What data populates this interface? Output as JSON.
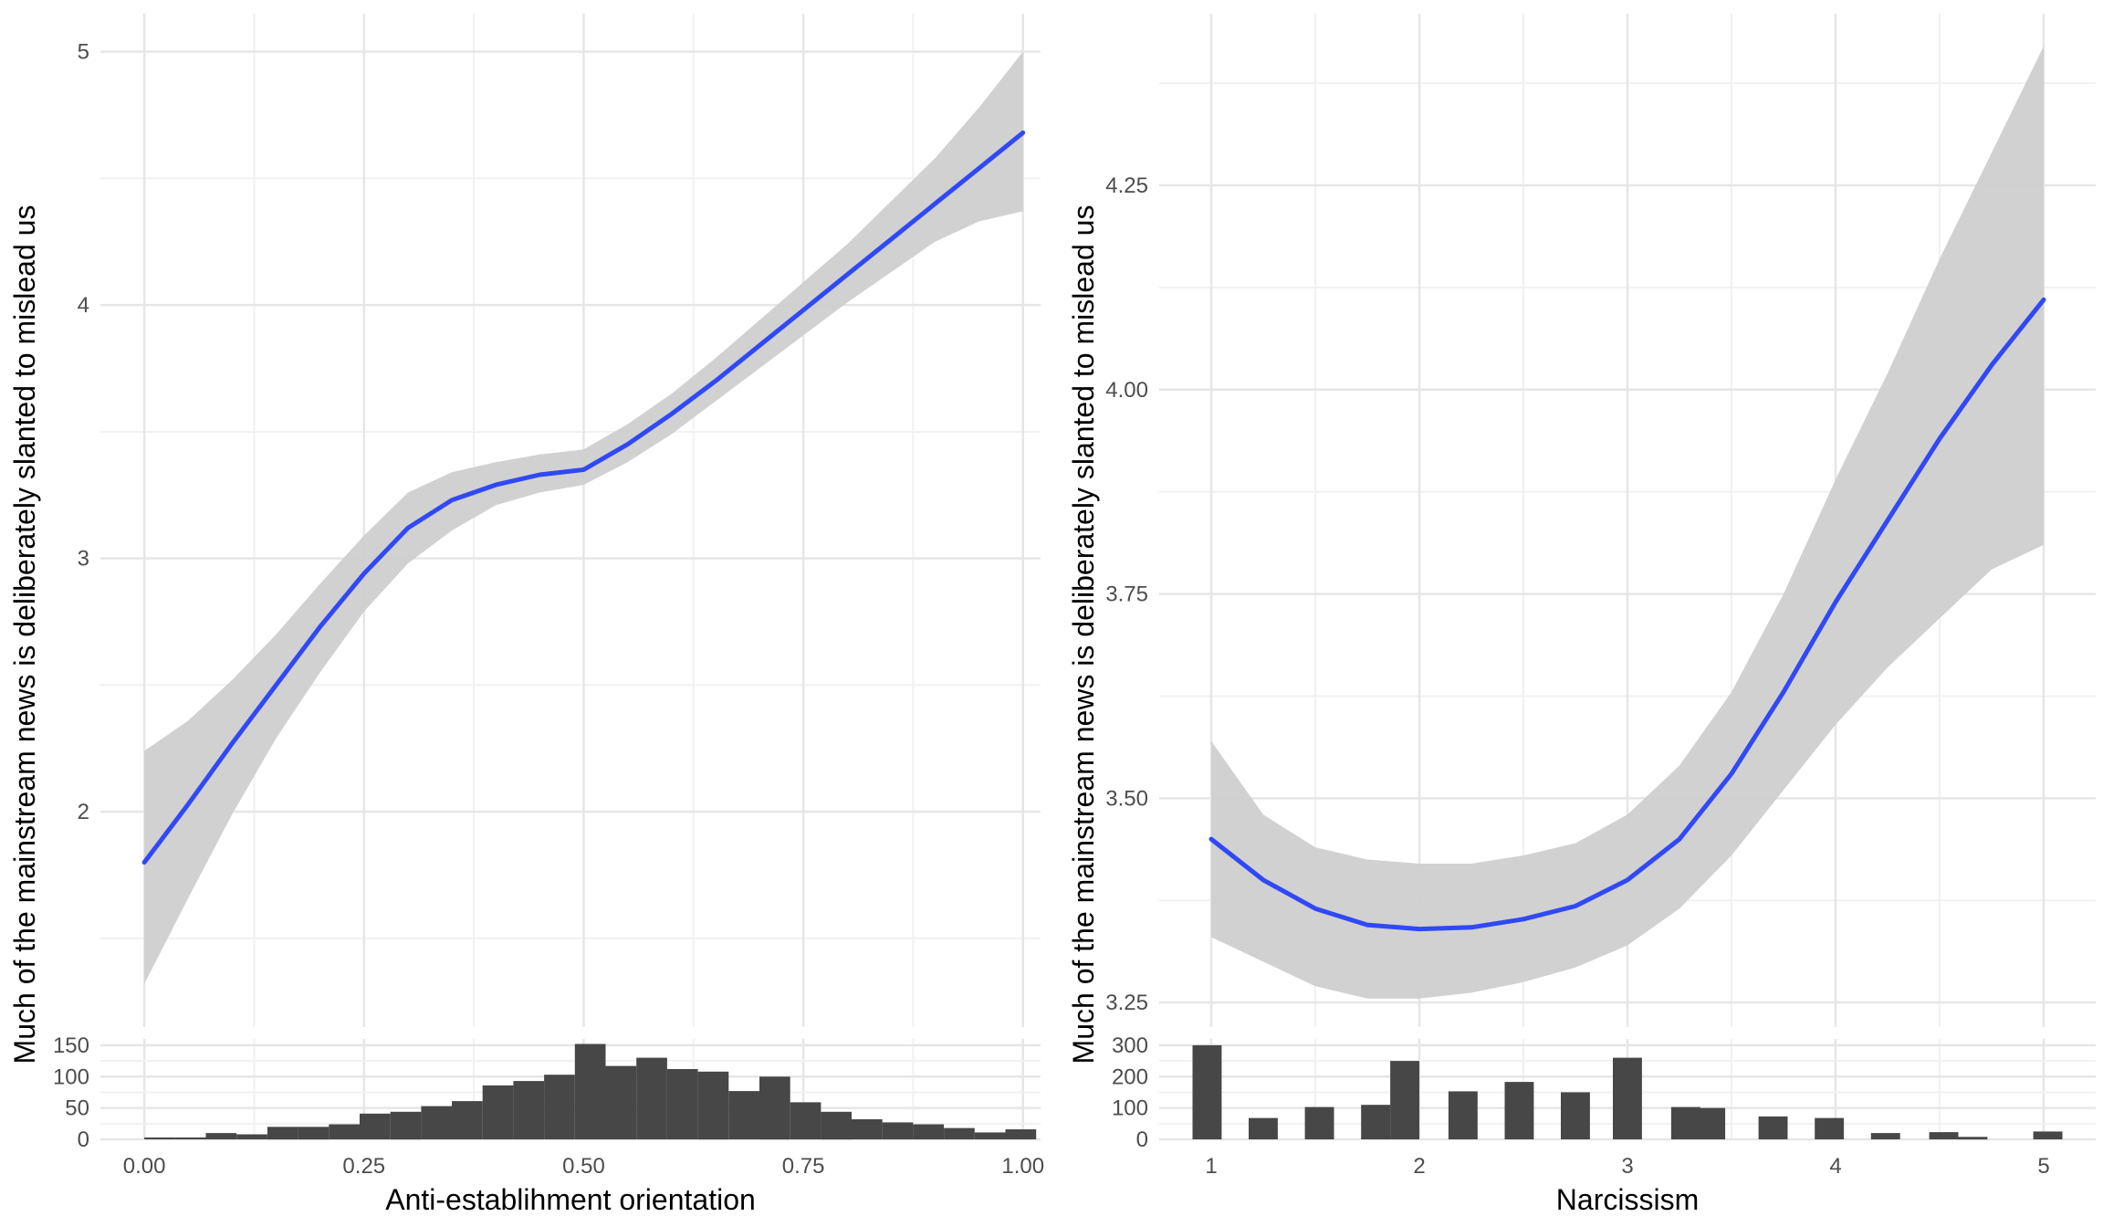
{
  "colors": {
    "smooth_line": "#3049f5",
    "ci_band": "#cfcfcf",
    "histogram": "#474747",
    "grid_major": "#e6e6e6",
    "grid_minor": "#f1f1f1"
  },
  "chart_data": [
    {
      "type": "line",
      "panel": "left",
      "xlabel": "Anti-establihment orientation",
      "ylabel": "Much of the mainstream news is deliberately slanted to mislead us",
      "xlim": [
        -0.05,
        1.02
      ],
      "ylim": [
        1.15,
        5.15
      ],
      "x_ticks": [
        "0.00",
        "0.25",
        "0.50",
        "0.75",
        "1.00"
      ],
      "x_tick_values": [
        0,
        0.25,
        0.5,
        0.75,
        1
      ],
      "y_ticks": [
        "2",
        "3",
        "4",
        "5"
      ],
      "y_tick_values": [
        2,
        3,
        4,
        5
      ],
      "grid": true,
      "series": [
        {
          "x": [
            0.0,
            0.05,
            0.1,
            0.15,
            0.2,
            0.25,
            0.3,
            0.35,
            0.4,
            0.45,
            0.5,
            0.55,
            0.6,
            0.65,
            0.7,
            0.75,
            0.8,
            0.85,
            0.9,
            0.95,
            1.0
          ],
          "y": [
            1.8,
            2.03,
            2.27,
            2.5,
            2.73,
            2.94,
            3.12,
            3.23,
            3.29,
            3.33,
            3.35,
            3.45,
            3.57,
            3.7,
            3.84,
            3.98,
            4.12,
            4.26,
            4.4,
            4.54,
            4.68
          ],
          "lower": [
            1.32,
            1.66,
            1.99,
            2.29,
            2.55,
            2.79,
            2.98,
            3.11,
            3.21,
            3.26,
            3.29,
            3.38,
            3.49,
            3.62,
            3.75,
            3.88,
            4.01,
            4.13,
            4.25,
            4.33,
            4.37
          ],
          "upper": [
            2.24,
            2.36,
            2.52,
            2.7,
            2.9,
            3.09,
            3.26,
            3.34,
            3.38,
            3.41,
            3.43,
            3.53,
            3.65,
            3.79,
            3.94,
            4.09,
            4.24,
            4.41,
            4.58,
            4.78,
            5.0
          ]
        }
      ],
      "histogram": {
        "ylim": [
          0,
          160
        ],
        "y_ticks": [
          "0",
          "50",
          "100",
          "150"
        ],
        "y_tick_values": [
          0,
          50,
          100,
          150
        ],
        "bin_width": 0.035,
        "bin_centers": [
          0.0175,
          0.0525,
          0.0875,
          0.1225,
          0.1575,
          0.1925,
          0.2275,
          0.2625,
          0.2975,
          0.3325,
          0.3675,
          0.4025,
          0.4375,
          0.4725,
          0.5075,
          0.5425,
          0.5775,
          0.6125,
          0.6475,
          0.6825,
          0.7175,
          0.7525,
          0.7875,
          0.8225,
          0.8575,
          0.8925,
          0.9275,
          0.9625,
          0.9975
        ],
        "counts": [
          3,
          3,
          10,
          8,
          20,
          20,
          24,
          41,
          44,
          53,
          61,
          86,
          93,
          103,
          152,
          117,
          130,
          112,
          108,
          77,
          100,
          59,
          44,
          32,
          27,
          24,
          18,
          11,
          16
        ]
      }
    },
    {
      "type": "line",
      "panel": "right",
      "xlabel": "Narcissism",
      "ylabel": "Much of the mainstream news is deliberately slanted to mislead us",
      "xlim": [
        0.75,
        5.25
      ],
      "ylim": [
        3.22,
        4.46
      ],
      "x_ticks": [
        "1",
        "2",
        "3",
        "4",
        "5"
      ],
      "x_tick_values": [
        1,
        2,
        3,
        4,
        5
      ],
      "y_ticks": [
        "3.25",
        "3.50",
        "3.75",
        "4.00",
        "4.25"
      ],
      "y_tick_values": [
        3.25,
        3.5,
        3.75,
        4.0,
        4.25
      ],
      "grid": true,
      "series": [
        {
          "x": [
            1.0,
            1.25,
            1.5,
            1.75,
            2.0,
            2.25,
            2.5,
            2.75,
            3.0,
            3.25,
            3.5,
            3.75,
            4.0,
            4.25,
            4.5,
            4.75,
            5.0
          ],
          "y": [
            3.45,
            3.4,
            3.365,
            3.345,
            3.34,
            3.342,
            3.352,
            3.368,
            3.4,
            3.45,
            3.53,
            3.63,
            3.74,
            3.84,
            3.94,
            4.03,
            4.11
          ],
          "lower": [
            3.33,
            3.3,
            3.27,
            3.255,
            3.255,
            3.262,
            3.275,
            3.293,
            3.32,
            3.365,
            3.43,
            3.51,
            3.59,
            3.66,
            3.72,
            3.78,
            3.81
          ],
          "upper": [
            3.57,
            3.48,
            3.44,
            3.425,
            3.42,
            3.42,
            3.43,
            3.445,
            3.48,
            3.54,
            3.63,
            3.75,
            3.89,
            4.02,
            4.16,
            4.29,
            4.42
          ]
        }
      ],
      "histogram": {
        "ylim": [
          0,
          320
        ],
        "y_ticks": [
          "0",
          "100",
          "200",
          "300"
        ],
        "y_tick_values": [
          0,
          100,
          200,
          300
        ],
        "bin_width": 0.14,
        "bin_centers": [
          0.98,
          1.25,
          1.52,
          1.79,
          1.93,
          2.21,
          2.48,
          2.75,
          3.0,
          3.28,
          3.4,
          3.7,
          3.97,
          4.24,
          4.52,
          4.66,
          5.02
        ],
        "counts": [
          300,
          68,
          103,
          110,
          250,
          153,
          183,
          150,
          260,
          103,
          100,
          73,
          68,
          20,
          23,
          8,
          25
        ]
      }
    }
  ]
}
